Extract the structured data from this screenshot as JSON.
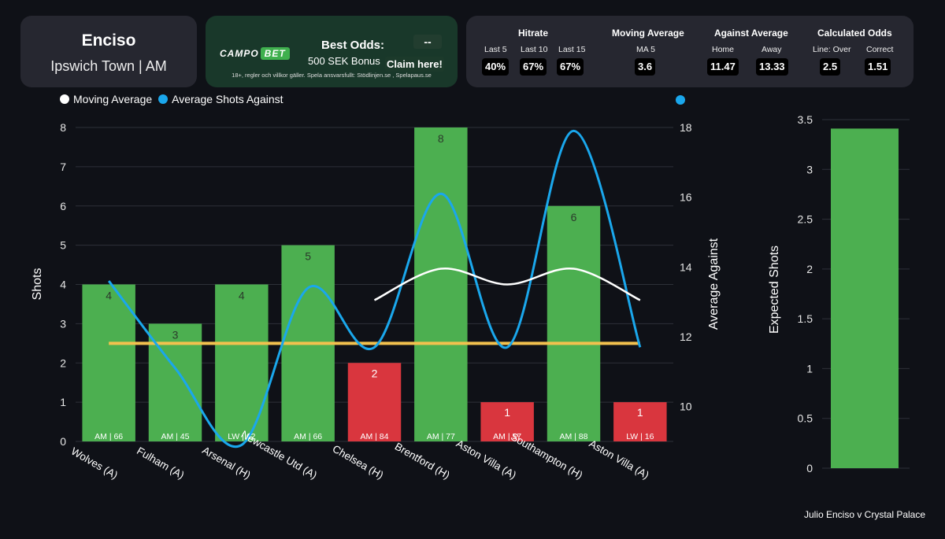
{
  "player": {
    "name": "Enciso",
    "team_position": "Ipswich Town | AM"
  },
  "odds_box": {
    "brand_main": "CAMPO",
    "brand_accent": "BET",
    "best_odds_label": "Best Odds:",
    "best_odds_value": "--",
    "bonus": "500 SEK Bonus",
    "claim": "Claim here!",
    "disclaimer": "18+, regler och villkor gäller. Spela ansvarsfullt: Stödlinjen.se , Spelapaus.se"
  },
  "stats": {
    "hitrate": {
      "title": "Hitrate",
      "items": [
        {
          "label": "Last 5",
          "value": "40%"
        },
        {
          "label": "Last 10",
          "value": "67%"
        },
        {
          "label": "Last 15",
          "value": "67%"
        }
      ]
    },
    "moving_average": {
      "title": "Moving Average",
      "items": [
        {
          "label": "MA 5",
          "value": "3.6"
        }
      ]
    },
    "against_average": {
      "title": "Against Average",
      "items": [
        {
          "label": "Home",
          "value": "11.47"
        },
        {
          "label": "Away",
          "value": "13.33"
        }
      ]
    },
    "calculated_odds": {
      "title": "Calculated Odds",
      "items": [
        {
          "label": "Line: Over",
          "value": "2.5"
        },
        {
          "label": "Correct",
          "value": "1.51"
        }
      ]
    }
  },
  "legend": [
    {
      "label": "Moving Average",
      "color": "#ffffff"
    },
    {
      "label": "Average Shots Against",
      "color": "#1aa7ec"
    }
  ],
  "chart_data": [
    {
      "type": "bar",
      "ylabel": "Shots",
      "y2label": "Average Against",
      "ylim": [
        0,
        8
      ],
      "y2lim": [
        9,
        18
      ],
      "yticks": [
        0,
        1,
        2,
        3,
        4,
        5,
        6,
        7,
        8
      ],
      "y2ticks": [
        10,
        12,
        14,
        16,
        18
      ],
      "categories": [
        "Wolves (A)",
        "Fulham (A)",
        "Arsenal (H)",
        "Newcastle Utd (A)",
        "Chelsea (H)",
        "Brentford (H)",
        "Aston Villa (A)",
        "Southampton (H)",
        "Aston Villa (A)"
      ],
      "values": [
        4,
        3,
        4,
        5,
        2,
        8,
        1,
        6,
        1
      ],
      "value_labels": [
        "4",
        "3",
        "4",
        "5",
        "2",
        "8",
        "1",
        "6",
        "1"
      ],
      "bar_tags": [
        "AM | 66",
        "AM | 45",
        "LW | 62",
        "AM | 66",
        "AM | 84",
        "AM | 77",
        "AM | 57",
        "AM | 88",
        "LW | 16"
      ],
      "hit": [
        true,
        true,
        true,
        true,
        false,
        true,
        false,
        true,
        false
      ],
      "hit_color": "#4caf50",
      "miss_color": "#d9363e",
      "line": 2.5,
      "line_color": "#f2c14e",
      "moving_average": [
        null,
        null,
        null,
        null,
        3.6,
        4.4,
        4.0,
        4.4,
        3.6
      ],
      "average_against": [
        13.6,
        11.1,
        8.9,
        13.4,
        11.7,
        16.1,
        11.7,
        17.9,
        11.7
      ]
    },
    {
      "type": "bar",
      "ylabel": "Expected Shots",
      "ylim": [
        0,
        3.5
      ],
      "yticks": [
        "0",
        "0.5",
        "1",
        "1.5",
        "2",
        "2.5",
        "3",
        "3.5"
      ],
      "categories": [
        "Julio Enciso v Crystal Palace"
      ],
      "values": [
        3.41
      ],
      "color": "#4caf50"
    }
  ]
}
